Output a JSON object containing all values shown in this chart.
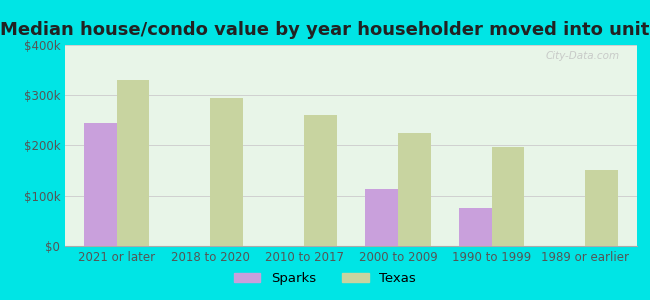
{
  "title": "Median house/condo value by year householder moved into unit",
  "categories": [
    "2021 or later",
    "2018 to 2020",
    "2010 to 2017",
    "2000 to 2009",
    "1990 to 1999",
    "1989 or earlier"
  ],
  "sparks_values": [
    245000,
    null,
    null,
    113000,
    75000,
    null
  ],
  "texas_values": [
    330000,
    295000,
    260000,
    225000,
    198000,
    152000
  ],
  "sparks_color": "#c9a0dc",
  "texas_color": "#c8d4a0",
  "background_color": "#00e5e5",
  "plot_bg_color": "#e8f5e8",
  "ylim": [
    0,
    400000
  ],
  "yticks": [
    0,
    100000,
    200000,
    300000,
    400000
  ],
  "ytick_labels": [
    "$0",
    "$100k",
    "$200k",
    "$300k",
    "$400k"
  ],
  "bar_width": 0.35,
  "grid_color": "#d0d0d0",
  "title_fontsize": 13,
  "tick_fontsize": 8.5,
  "legend_fontsize": 9.5,
  "watermark": "City-Data.com"
}
